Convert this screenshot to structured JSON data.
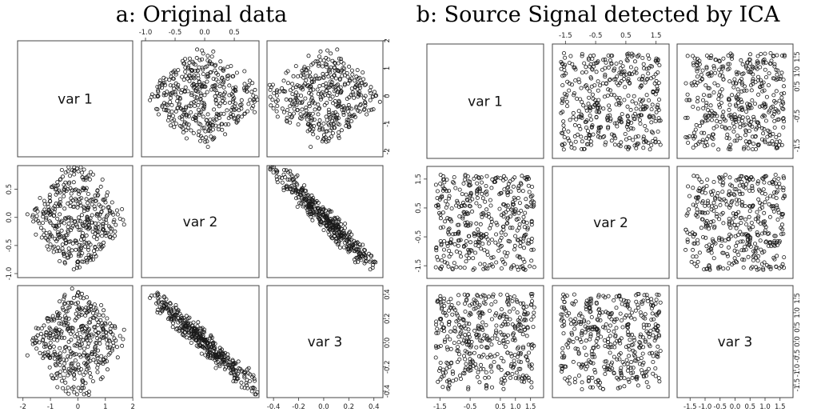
{
  "chart_data": [
    {
      "type": "scatter",
      "title": "a: Original data",
      "variables": [
        "var 1",
        "var 2",
        "var 3"
      ],
      "n_points": 500,
      "ticks": {
        "var1": [
          "-2",
          "-1",
          "0",
          "1",
          "2"
        ],
        "var2": [
          "-1.0",
          "-0.5",
          "0.0",
          "0.5"
        ],
        "var3": [
          "-0.4",
          "-0.2",
          "0.0",
          "0.2",
          "0.4"
        ]
      },
      "ranges": {
        "var1": [
          -2.0,
          1.8
        ],
        "var2": [
          -1.0,
          0.85
        ],
        "var3": [
          -0.4,
          0.42
        ]
      },
      "relationships": [
        {
          "pair": [
            "var 1",
            "var 2"
          ],
          "description": "diamond-shaped cloud"
        },
        {
          "pair": [
            "var 1",
            "var 3"
          ],
          "description": "no clear relationship"
        },
        {
          "pair": [
            "var 2",
            "var 3"
          ],
          "description": "strong negative linear relationship"
        }
      ]
    },
    {
      "type": "scatter",
      "title": "b: Source Signal detected by ICA",
      "variables": [
        "var 1",
        "var 2",
        "var 3"
      ],
      "n_points": 500,
      "ticks": {
        "var1": [
          "-1.5",
          "-0.5",
          "0.5",
          "1.0",
          "1.5"
        ],
        "var2": [
          "-1.5",
          "-0.5",
          "0.5",
          "1.5"
        ],
        "var3": [
          "-1.5",
          "-1.0",
          "-0.5",
          "0.0",
          "0.5",
          "1.0",
          "1.5"
        ]
      },
      "ranges": {
        "var1": [
          -1.75,
          1.75
        ],
        "var2": [
          -1.75,
          1.75
        ],
        "var3": [
          -1.75,
          1.75
        ]
      },
      "relationships": [
        {
          "pair": [
            "var 1",
            "var 2"
          ],
          "description": "uniform, independent"
        },
        {
          "pair": [
            "var 1",
            "var 3"
          ],
          "description": "uniform, independent"
        },
        {
          "pair": [
            "var 2",
            "var 3"
          ],
          "description": "uniform, independent"
        }
      ]
    }
  ]
}
